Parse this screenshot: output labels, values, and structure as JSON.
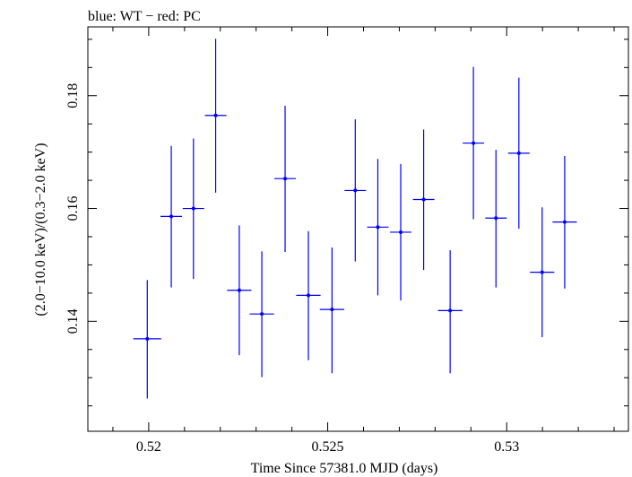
{
  "chart_data": {
    "type": "scatter",
    "title": "blue: WT − red: PC",
    "xlabel": "Time Since 57381.0 MJD (days)",
    "ylabel": "(2.0−10.0 keV)/(0.3−2.0 keV)",
    "xlim": [
      0.5183,
      0.5334
    ],
    "ylim": [
      0.1205,
      0.1922
    ],
    "xticks": [
      {
        "value": 0.52,
        "label": "0.52"
      },
      {
        "value": 0.525,
        "label": "0.525"
      },
      {
        "value": 0.53,
        "label": "0.53"
      }
    ],
    "yticks": [
      {
        "value": 0.14,
        "label": "0.14"
      },
      {
        "value": 0.16,
        "label": "0.16"
      },
      {
        "value": 0.18,
        "label": "0.18"
      }
    ],
    "grid": false,
    "series": [
      {
        "color": "#0000ff",
        "points": [
          {
            "x": 0.51996,
            "y": 0.1369,
            "xerr": 0.00039,
            "yerr_lo": 0.0106,
            "yerr_hi": 0.0104
          },
          {
            "x": 0.52063,
            "y": 0.1586,
            "xerr": 0.0003,
            "yerr_lo": 0.0126,
            "yerr_hi": 0.0125
          },
          {
            "x": 0.52125,
            "y": 0.16,
            "xerr": 0.0003,
            "yerr_lo": 0.0125,
            "yerr_hi": 0.0124
          },
          {
            "x": 0.52187,
            "y": 0.1765,
            "xerr": 0.0003,
            "yerr_lo": 0.0137,
            "yerr_hi": 0.0136
          },
          {
            "x": 0.52253,
            "y": 0.1455,
            "xerr": 0.00034,
            "yerr_lo": 0.0115,
            "yerr_hi": 0.0115
          },
          {
            "x": 0.52316,
            "y": 0.1413,
            "xerr": 0.00034,
            "yerr_lo": 0.0112,
            "yerr_hi": 0.0111
          },
          {
            "x": 0.52381,
            "y": 0.1653,
            "xerr": 0.0003,
            "yerr_lo": 0.013,
            "yerr_hi": 0.0129
          },
          {
            "x": 0.52446,
            "y": 0.1446,
            "xerr": 0.00034,
            "yerr_lo": 0.0115,
            "yerr_hi": 0.0114
          },
          {
            "x": 0.52512,
            "y": 0.1421,
            "xerr": 0.00034,
            "yerr_lo": 0.0113,
            "yerr_hi": 0.011
          },
          {
            "x": 0.52577,
            "y": 0.1632,
            "xerr": 0.0003,
            "yerr_lo": 0.0126,
            "yerr_hi": 0.0126
          },
          {
            "x": 0.5264,
            "y": 0.1567,
            "xerr": 0.0003,
            "yerr_lo": 0.0121,
            "yerr_hi": 0.0121
          },
          {
            "x": 0.52704,
            "y": 0.1558,
            "xerr": 0.0003,
            "yerr_lo": 0.0121,
            "yerr_hi": 0.0121
          },
          {
            "x": 0.52768,
            "y": 0.1616,
            "xerr": 0.0003,
            "yerr_lo": 0.0125,
            "yerr_hi": 0.0124
          },
          {
            "x": 0.52842,
            "y": 0.1419,
            "xerr": 0.00034,
            "yerr_lo": 0.0111,
            "yerr_hi": 0.0107
          },
          {
            "x": 0.52907,
            "y": 0.1716,
            "xerr": 0.0003,
            "yerr_lo": 0.0135,
            "yerr_hi": 0.0135
          },
          {
            "x": 0.5297,
            "y": 0.1583,
            "xerr": 0.0003,
            "yerr_lo": 0.0123,
            "yerr_hi": 0.0121
          },
          {
            "x": 0.53034,
            "y": 0.1698,
            "xerr": 0.0003,
            "yerr_lo": 0.0134,
            "yerr_hi": 0.0134
          },
          {
            "x": 0.53099,
            "y": 0.1487,
            "xerr": 0.00034,
            "yerr_lo": 0.0115,
            "yerr_hi": 0.0115
          },
          {
            "x": 0.53162,
            "y": 0.1576,
            "xerr": 0.00034,
            "yerr_lo": 0.0118,
            "yerr_hi": 0.0117
          }
        ]
      }
    ]
  }
}
